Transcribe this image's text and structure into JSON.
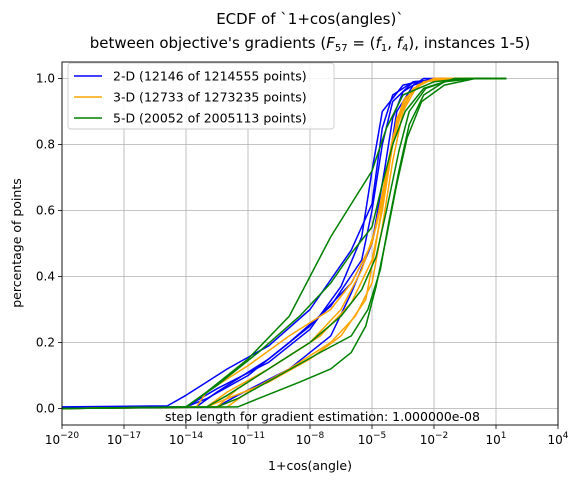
{
  "chart_data": {
    "type": "line",
    "title_line1": "ECDF of `1+cos(angles)`",
    "title_line2": "between objective's gradients (F57 = (f1, f4), instances 1-5)",
    "title_line2_prefix": "between objective's gradients (",
    "title_line2_F": "F",
    "title_line2_Fsub": "57",
    "title_line2_mid": " = (",
    "title_line2_f1": "f",
    "title_line2_f1sub": "1",
    "title_line2_comma": ", ",
    "title_line2_f4": "f",
    "title_line2_f4sub": "4",
    "title_line2_suffix": "), instances 1-5)",
    "xlabel": "1+cos(angle)",
    "ylabel": "percentage of points",
    "xscale": "log",
    "xlim_exp": [
      -20,
      4
    ],
    "ylim": [
      -0.05,
      1.05
    ],
    "x_ticks": [
      {
        "exp": -20,
        "label": "10",
        "sup": "−20"
      },
      {
        "exp": -17,
        "label": "10",
        "sup": "−17"
      },
      {
        "exp": -14,
        "label": "10",
        "sup": "−14"
      },
      {
        "exp": -11,
        "label": "10",
        "sup": "−11"
      },
      {
        "exp": -8,
        "label": "10",
        "sup": "−8"
      },
      {
        "exp": -5,
        "label": "10",
        "sup": "−5"
      },
      {
        "exp": -2,
        "label": "10",
        "sup": "−2"
      },
      {
        "exp": 1,
        "label": "10",
        "sup": "1"
      },
      {
        "exp": 4,
        "label": "10",
        "sup": "4"
      }
    ],
    "y_ticks": [
      "0.0",
      "0.2",
      "0.4",
      "0.6",
      "0.8",
      "1.0"
    ],
    "grid": true,
    "legend_position": "top-left",
    "annotation": "step length for gradient estimation: 1.000000e-08",
    "series": [
      {
        "name": "2-D (12146 of 1214555 points)",
        "color": "#0000ff",
        "curves": [
          [
            [
              -20,
              0.005
            ],
            [
              -14.9,
              0.008
            ],
            [
              -14,
              0.04
            ],
            [
              -12,
              0.12
            ],
            [
              -10,
              0.19
            ],
            [
              -8,
              0.3
            ],
            [
              -6,
              0.48
            ],
            [
              -5,
              0.62
            ],
            [
              -4.5,
              0.85
            ],
            [
              -4,
              0.95
            ],
            [
              -3,
              0.99
            ],
            [
              -1,
              1.0
            ],
            [
              0.5,
              1.0
            ]
          ],
          [
            [
              -20,
              0.0
            ],
            [
              -14,
              0.005
            ],
            [
              -13,
              0.03
            ],
            [
              -11,
              0.1
            ],
            [
              -9,
              0.2
            ],
            [
              -7,
              0.31
            ],
            [
              -5.5,
              0.45
            ],
            [
              -5,
              0.6
            ],
            [
              -4.5,
              0.8
            ],
            [
              -4,
              0.93
            ],
            [
              -3,
              0.99
            ],
            [
              -1,
              1.0
            ],
            [
              0.5,
              1.0
            ]
          ],
          [
            [
              -20,
              0.0
            ],
            [
              -13.5,
              0.005
            ],
            [
              -12.5,
              0.05
            ],
            [
              -10,
              0.15
            ],
            [
              -8,
              0.25
            ],
            [
              -6,
              0.38
            ],
            [
              -5,
              0.5
            ],
            [
              -4.3,
              0.7
            ],
            [
              -3.8,
              0.9
            ],
            [
              -3,
              0.98
            ],
            [
              -2,
              1.0
            ],
            [
              0.5,
              1.0
            ]
          ],
          [
            [
              -20,
              0.0
            ],
            [
              -12.5,
              0.005
            ],
            [
              -11.5,
              0.04
            ],
            [
              -9,
              0.12
            ],
            [
              -7,
              0.22
            ],
            [
              -6,
              0.35
            ],
            [
              -5,
              0.5
            ],
            [
              -4.4,
              0.72
            ],
            [
              -4,
              0.88
            ],
            [
              -3.5,
              0.96
            ],
            [
              -2.5,
              1.0
            ],
            [
              0.5,
              1.0
            ]
          ],
          [
            [
              -20,
              0.0
            ],
            [
              -14,
              0.005
            ],
            [
              -12.5,
              0.06
            ],
            [
              -10,
              0.14
            ],
            [
              -8,
              0.24
            ],
            [
              -6.5,
              0.37
            ],
            [
              -5.5,
              0.52
            ],
            [
              -5,
              0.72
            ],
            [
              -4.5,
              0.9
            ],
            [
              -3.5,
              0.98
            ],
            [
              -2,
              1.0
            ],
            [
              0.5,
              1.0
            ]
          ]
        ]
      },
      {
        "name": "3-D (12733 of 1273235 points)",
        "color": "#ffa500",
        "curves": [
          [
            [
              -20,
              0.0
            ],
            [
              -13.5,
              0.005
            ],
            [
              -13,
              0.05
            ],
            [
              -11,
              0.13
            ],
            [
              -9,
              0.22
            ],
            [
              -7,
              0.3
            ],
            [
              -6,
              0.38
            ],
            [
              -5,
              0.5
            ],
            [
              -4.5,
              0.65
            ],
            [
              -4,
              0.82
            ],
            [
              -3.5,
              0.93
            ],
            [
              -2.5,
              0.99
            ],
            [
              -1,
              1.0
            ],
            [
              0.5,
              1.0
            ]
          ],
          [
            [
              -20,
              0.0
            ],
            [
              -13,
              0.005
            ],
            [
              -12,
              0.05
            ],
            [
              -10,
              0.12
            ],
            [
              -8,
              0.2
            ],
            [
              -6.5,
              0.3
            ],
            [
              -5.5,
              0.42
            ],
            [
              -4.8,
              0.55
            ],
            [
              -4.2,
              0.72
            ],
            [
              -3.8,
              0.88
            ],
            [
              -3,
              0.97
            ],
            [
              -2,
              1.0
            ],
            [
              0.5,
              1.0
            ]
          ],
          [
            [
              -20,
              0.0
            ],
            [
              -13,
              0.005
            ],
            [
              -12,
              0.03
            ],
            [
              -10,
              0.08
            ],
            [
              -8,
              0.15
            ],
            [
              -6.5,
              0.22
            ],
            [
              -5.3,
              0.33
            ],
            [
              -4.8,
              0.5
            ],
            [
              -4.3,
              0.7
            ],
            [
              -3.8,
              0.87
            ],
            [
              -3,
              0.97
            ],
            [
              -2,
              1.0
            ],
            [
              0.5,
              1.0
            ]
          ],
          [
            [
              -20,
              0.0
            ],
            [
              -12.5,
              0.005
            ],
            [
              -11.5,
              0.06
            ],
            [
              -9.5,
              0.14
            ],
            [
              -7.5,
              0.22
            ],
            [
              -6,
              0.32
            ],
            [
              -5,
              0.45
            ],
            [
              -4.5,
              0.6
            ],
            [
              -4,
              0.8
            ],
            [
              -3.4,
              0.94
            ],
            [
              -2.5,
              0.99
            ],
            [
              -1.5,
              1.0
            ],
            [
              0.5,
              1.0
            ]
          ],
          [
            [
              -20,
              0.0
            ],
            [
              -12,
              0.005
            ],
            [
              -11,
              0.05
            ],
            [
              -9,
              0.12
            ],
            [
              -7,
              0.2
            ],
            [
              -5.8,
              0.28
            ],
            [
              -5,
              0.38
            ],
            [
              -4.5,
              0.55
            ],
            [
              -4,
              0.75
            ],
            [
              -3.5,
              0.9
            ],
            [
              -2.8,
              0.98
            ],
            [
              -2,
              1.0
            ],
            [
              0.5,
              1.0
            ]
          ]
        ]
      },
      {
        "name": "5-D (20052 of 2005113 points)",
        "color": "#008000",
        "curves": [
          [
            [
              -20,
              0.0
            ],
            [
              -14,
              0.005
            ],
            [
              -13,
              0.05
            ],
            [
              -11,
              0.15
            ],
            [
              -9,
              0.28
            ],
            [
              -8,
              0.4
            ],
            [
              -7,
              0.52
            ],
            [
              -6,
              0.62
            ],
            [
              -5,
              0.72
            ],
            [
              -4.3,
              0.85
            ],
            [
              -3.5,
              0.95
            ],
            [
              -2,
              0.99
            ],
            [
              -0.5,
              1.0
            ],
            [
              1.5,
              1.0
            ]
          ],
          [
            [
              -20,
              0.0
            ],
            [
              -14,
              0.005
            ],
            [
              -12.5,
              0.07
            ],
            [
              -10.5,
              0.17
            ],
            [
              -8.5,
              0.28
            ],
            [
              -7,
              0.38
            ],
            [
              -6,
              0.47
            ],
            [
              -5,
              0.55
            ],
            [
              -4.5,
              0.68
            ],
            [
              -4,
              0.8
            ],
            [
              -3.4,
              0.9
            ],
            [
              -2.5,
              0.97
            ],
            [
              -1,
              1.0
            ],
            [
              1.5,
              1.0
            ]
          ],
          [
            [
              -20,
              0.0
            ],
            [
              -13,
              0.005
            ],
            [
              -12,
              0.04
            ],
            [
              -10,
              0.12
            ],
            [
              -8,
              0.2
            ],
            [
              -6.5,
              0.28
            ],
            [
              -5.5,
              0.36
            ],
            [
              -4.8,
              0.46
            ],
            [
              -4.3,
              0.6
            ],
            [
              -3.7,
              0.78
            ],
            [
              -3.2,
              0.9
            ],
            [
              -2.4,
              0.97
            ],
            [
              -1,
              1.0
            ],
            [
              1.5,
              1.0
            ]
          ],
          [
            [
              -20,
              0.0
            ],
            [
              -12.5,
              0.005
            ],
            [
              -11.5,
              0.03
            ],
            [
              -9.5,
              0.1
            ],
            [
              -7.5,
              0.17
            ],
            [
              -6,
              0.22
            ],
            [
              -5.2,
              0.3
            ],
            [
              -4.6,
              0.42
            ],
            [
              -4.2,
              0.56
            ],
            [
              -3.7,
              0.72
            ],
            [
              -3.2,
              0.86
            ],
            [
              -2.5,
              0.95
            ],
            [
              -1.5,
              0.99
            ],
            [
              0,
              1.0
            ],
            [
              1.5,
              1.0
            ]
          ],
          [
            [
              -20,
              0.0
            ],
            [
              -11.5,
              0.005
            ],
            [
              -10.5,
              0.03
            ],
            [
              -8.5,
              0.08
            ],
            [
              -7,
              0.12
            ],
            [
              -6,
              0.17
            ],
            [
              -5.3,
              0.25
            ],
            [
              -4.8,
              0.37
            ],
            [
              -4.3,
              0.52
            ],
            [
              -3.8,
              0.68
            ],
            [
              -3.3,
              0.82
            ],
            [
              -2.6,
              0.93
            ],
            [
              -1.5,
              0.98
            ],
            [
              0,
              1.0
            ],
            [
              1.5,
              1.0
            ]
          ]
        ]
      }
    ]
  }
}
